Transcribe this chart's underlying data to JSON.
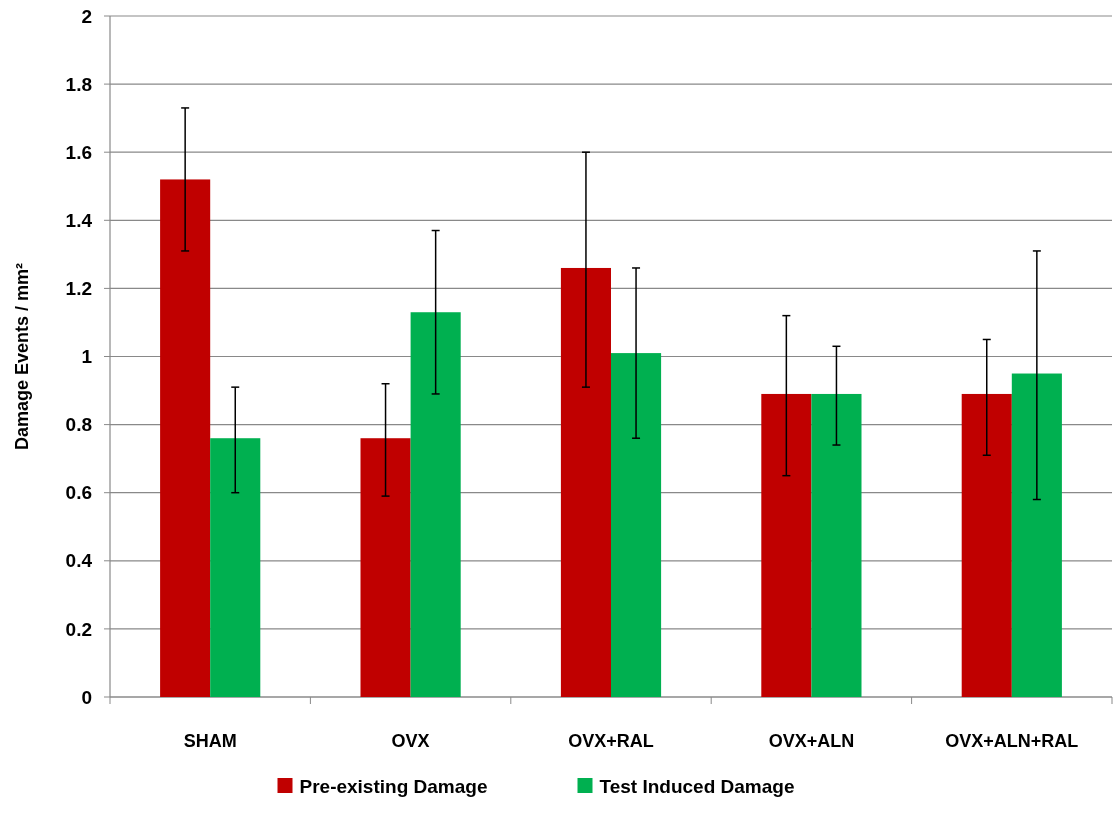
{
  "chart_data": {
    "type": "bar",
    "ylabel": "Damage Events / mm²",
    "categories": [
      "SHAM",
      "OVX",
      "OVX+RAL",
      "OVX+ALN",
      "OVX+ALN+RAL"
    ],
    "series": [
      {
        "name": "Pre-existing Damage",
        "color": "#c00000",
        "values": [
          1.52,
          0.76,
          1.26,
          0.89,
          0.89
        ],
        "errors": [
          [
            1.31,
            1.73
          ],
          [
            0.59,
            0.92
          ],
          [
            0.91,
            1.6
          ],
          [
            0.65,
            1.12
          ],
          [
            0.71,
            1.05
          ]
        ]
      },
      {
        "name": "Test Induced Damage",
        "color": "#00b050",
        "values": [
          0.76,
          1.13,
          1.01,
          0.89,
          0.95
        ],
        "errors": [
          [
            0.6,
            0.91
          ],
          [
            0.89,
            1.37
          ],
          [
            0.76,
            1.26
          ],
          [
            0.74,
            1.03
          ],
          [
            0.58,
            1.31
          ]
        ]
      }
    ],
    "ylim": [
      0,
      2
    ],
    "yticks": [
      0,
      0.2,
      0.4,
      0.6,
      0.8,
      1,
      1.2,
      1.4,
      1.6,
      1.8,
      2
    ],
    "grid": "y",
    "legend": "bottom"
  }
}
